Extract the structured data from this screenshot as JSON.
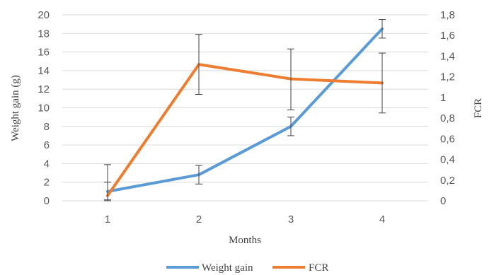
{
  "chart_data": {
    "type": "line",
    "title": "",
    "xlabel": "Months",
    "ylabel": "Weight gain (g)",
    "y2label": "FCR",
    "categories": [
      "1",
      "2",
      "3",
      "4"
    ],
    "ylim": [
      0,
      20
    ],
    "yticks": [
      "0",
      "2",
      "4",
      "6",
      "8",
      "10",
      "12",
      "14",
      "16",
      "18",
      "20"
    ],
    "y2lim": [
      0,
      1.8
    ],
    "y2ticks": [
      "0",
      "0,2",
      "0,4",
      "0,6",
      "0,8",
      "1",
      "1,2",
      "1,4",
      "1,6",
      "1,8"
    ],
    "grid": true,
    "legend_position": "bottom",
    "series": [
      {
        "name": "Weight gain",
        "axis": "left",
        "color": "#5b9bd5",
        "values": [
          1.0,
          2.8,
          8.0,
          18.5
        ],
        "err_low": [
          0.9,
          1.0,
          1.0,
          1.0
        ],
        "err_high": [
          1.0,
          1.0,
          1.0,
          1.0
        ]
      },
      {
        "name": "FCR",
        "axis": "right",
        "color": "#ed7d31",
        "values": [
          0.05,
          1.32,
          1.18,
          1.14
        ],
        "err_low": [
          0.05,
          0.29,
          0.3,
          0.29
        ],
        "err_high": [
          0.3,
          0.29,
          0.29,
          0.29
        ]
      }
    ]
  }
}
